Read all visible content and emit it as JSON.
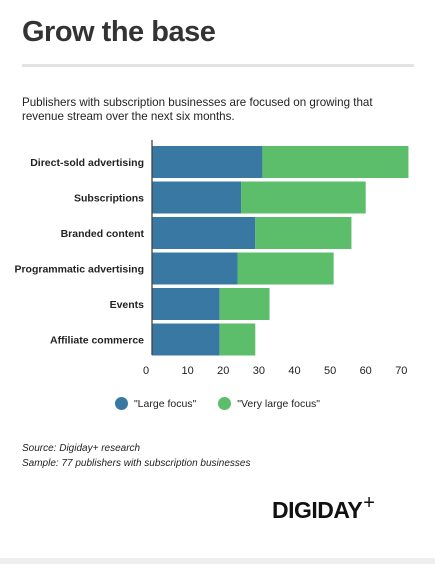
{
  "title": "Grow the base",
  "subtitle": "Publishers with subscription businesses are focused on growing that revenue stream over the next six months.",
  "source": "Source: Digiday+ research",
  "sample": "Sample: 77 publishers with subscription businesses",
  "logo": {
    "text": "DIGIDAY",
    "plus": "+"
  },
  "colors": {
    "large": "#3a78a4",
    "very_large": "#5cbd6b"
  },
  "chart_data": {
    "type": "bar",
    "orientation": "horizontal",
    "stacked": true,
    "categories": [
      "Direct-sold advertising",
      "Subscriptions",
      "Branded content",
      "Programmatic advertising",
      "Events",
      "Affiliate commerce"
    ],
    "series": [
      {
        "name": "\"Large focus\"",
        "values": [
          31,
          25,
          29,
          24,
          19,
          19
        ]
      },
      {
        "name": "\"Very large focus\"",
        "values": [
          41,
          35,
          27,
          27,
          14,
          10
        ]
      }
    ],
    "xticks": [
      0,
      10,
      20,
      30,
      40,
      50,
      60,
      70
    ],
    "xlim": [
      0,
      73
    ],
    "legend": "bottom-center",
    "grid": false
  }
}
